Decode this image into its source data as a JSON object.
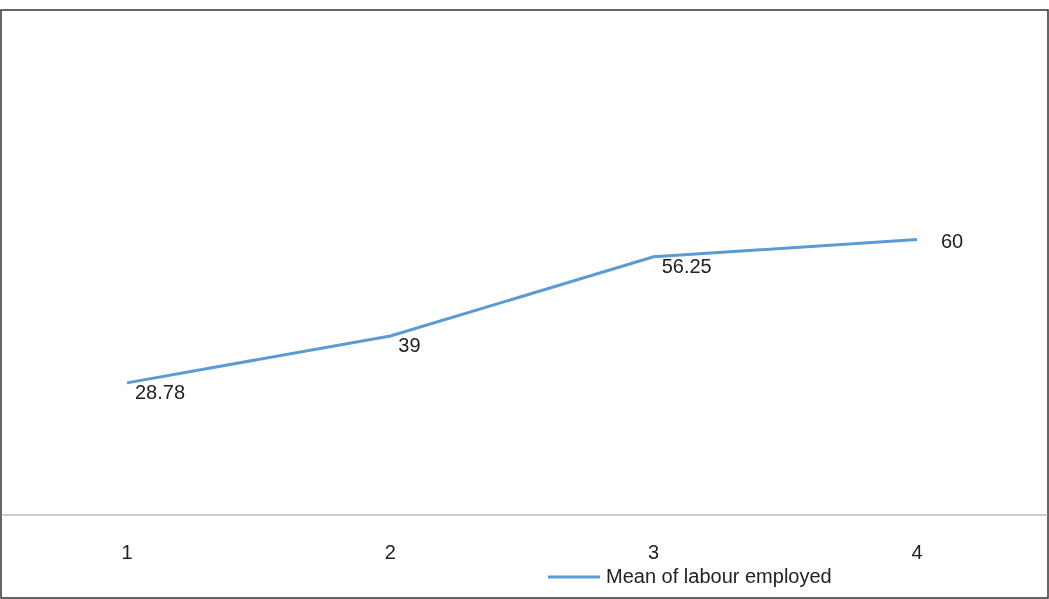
{
  "chart_data": {
    "type": "line",
    "categories": [
      "1",
      "2",
      "3",
      "4"
    ],
    "series": [
      {
        "name": "Mean of labour employed",
        "color": "#5b9bd5",
        "values": [
          28.78,
          39,
          56.25,
          60
        ]
      }
    ],
    "ylim": [
      0,
      110
    ],
    "tick_labels": "x",
    "data_labels": true,
    "legend": "bottom",
    "marker": "none",
    "line_style": "solid"
  }
}
